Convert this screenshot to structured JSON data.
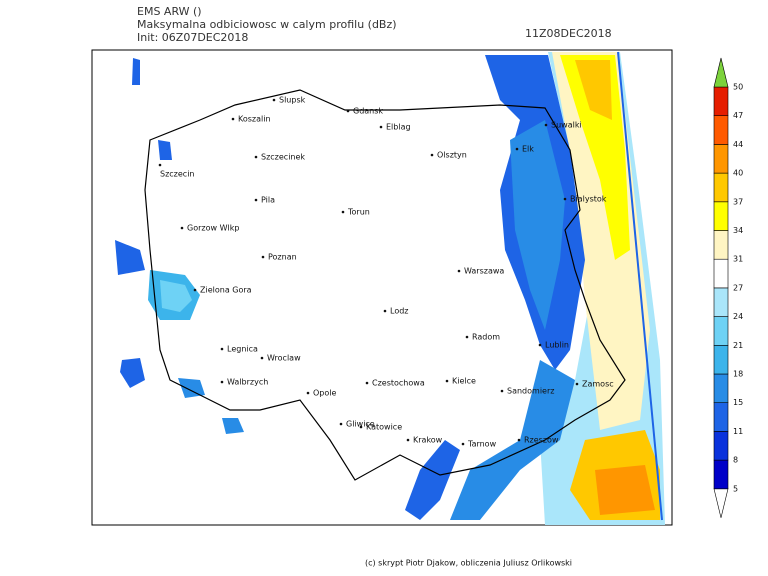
{
  "header": {
    "model": "EMS ARW ()",
    "field": "Maksymalna odbiciowosc w calym profilu (dBz)",
    "init": "Init: 06Z07DEC2018",
    "valid": "11Z08DEC2018"
  },
  "cities": [
    "Slupsk",
    "Koszalin",
    "Gdansk",
    "Elblag",
    "Szczecinek",
    "Olsztyn",
    "Szczecin",
    "Suwalki",
    "Elk",
    "Bialystok",
    "Pila",
    "Torun",
    "Gorzow Wlkp",
    "Poznan",
    "Warszawa",
    "Zielona Gora",
    "Lodz",
    "Radom",
    "Lublin",
    "Legnica",
    "Wroclaw",
    "Walbrzych",
    "Opole",
    "Czestochowa",
    "Kielce",
    "Sandomierz",
    "Zamosc",
    "Gliwice",
    "Katowice",
    "Krakow",
    "Tarnow",
    "Rzeszow"
  ],
  "colorbar": {
    "labels": [
      "5",
      "8",
      "11",
      "15",
      "18",
      "21",
      "24",
      "27",
      "31",
      "34",
      "37",
      "40",
      "44",
      "47",
      "50"
    ],
    "colors": [
      "#ffffff",
      "#0000c8",
      "#0a32dc",
      "#1e64e6",
      "#288ce6",
      "#3cb4eb",
      "#6ed2f5",
      "#aae6fa",
      "#ffffff",
      "#fff5c3",
      "#ffff00",
      "#ffc800",
      "#ff9600",
      "#ff5a00",
      "#e61e00",
      "#c80000",
      "#7cd23c"
    ]
  },
  "footer": "(c) skrypt Piotr Djakow, obliczenia Juliusz Orlikowski"
}
